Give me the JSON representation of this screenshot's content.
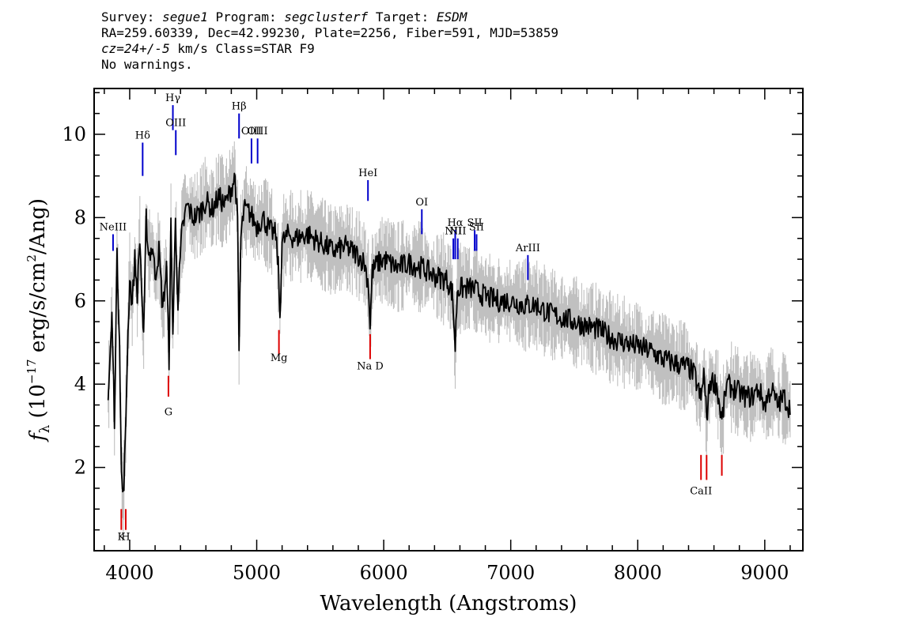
{
  "header": {
    "line1": {
      "survey_label": "Survey:",
      "survey": "segue1",
      "program_label": "Program:",
      "program": "segclusterf",
      "target_label": "Target:",
      "target": "ESDM"
    },
    "line2": "RA=259.60339, Dec=42.99230, Plate=2256, Fiber=591, MJD=53859",
    "line3": {
      "cz": "cz=24+/-5",
      "rest": "km/s Class=STAR F9"
    },
    "line4": "No warnings."
  },
  "chart_data": {
    "type": "line",
    "title": "",
    "xlabel": "Wavelength (Angstroms)",
    "ylabel_parts": {
      "f": "f",
      "sub": "λ",
      "open": " (10",
      "exp": "−17",
      "mid": " erg/s/cm",
      "exp2": "2",
      "close": "/Ang)"
    },
    "xlim": [
      3720,
      9300
    ],
    "ylim": [
      0.0,
      11.1
    ],
    "x_ticks": [
      4000,
      5000,
      6000,
      7000,
      8000,
      9000
    ],
    "x_tick_labels": [
      "4000",
      "5000",
      "6000",
      "7000",
      "8000",
      "9000"
    ],
    "y_ticks": [
      2,
      4,
      6,
      8,
      10
    ],
    "y_tick_labels": [
      "2",
      "4",
      "6",
      "8",
      "10"
    ],
    "grid": false,
    "legend": "none",
    "colors": {
      "flux": "#000000",
      "error": "#c0c0c0",
      "emission": "#0000cc",
      "absorption": "#dd0000"
    },
    "series": [
      {
        "role": "flux",
        "x": [
          3830,
          3860,
          3880,
          3900,
          3920,
          3935,
          3950,
          3965,
          3980,
          4000,
          4020,
          4040,
          4060,
          4080,
          4100,
          4110,
          4130,
          4150,
          4180,
          4200,
          4230,
          4260,
          4290,
          4310,
          4325,
          4340,
          4360,
          4380,
          4410,
          4450,
          4500,
          4550,
          4600,
          4650,
          4700,
          4750,
          4800,
          4830,
          4850,
          4861,
          4875,
          4900,
          4950,
          5000,
          5050,
          5100,
          5150,
          5170,
          5183,
          5200,
          5250,
          5300,
          5400,
          5500,
          5600,
          5700,
          5800,
          5850,
          5880,
          5893,
          5910,
          5950,
          6000,
          6100,
          6200,
          6300,
          6400,
          6500,
          6540,
          6563,
          6580,
          6650,
          6700,
          6800,
          6900,
          7000,
          7100,
          7200,
          7300,
          7400,
          7500,
          7600,
          7700,
          7800,
          7900,
          8000,
          8100,
          8200,
          8300,
          8400,
          8450,
          8498,
          8520,
          8542,
          8570,
          8620,
          8662,
          8700,
          8750,
          8800,
          8850,
          8900,
          8950,
          9000,
          9050,
          9100,
          9150,
          9200
        ],
        "y": [
          3.6,
          5.6,
          3.2,
          7.0,
          5.2,
          1.8,
          1.3,
          2.5,
          4.5,
          6.6,
          5.9,
          7.0,
          6.2,
          7.5,
          5.8,
          5.0,
          8.0,
          7.1,
          7.3,
          6.6,
          7.2,
          5.8,
          6.8,
          4.6,
          7.8,
          5.2,
          7.9,
          6.0,
          7.6,
          8.3,
          8.0,
          8.1,
          8.4,
          8.2,
          8.5,
          8.3,
          8.7,
          9.0,
          7.8,
          4.8,
          7.5,
          8.2,
          8.1,
          7.8,
          8.0,
          7.7,
          7.6,
          6.8,
          5.6,
          7.4,
          7.6,
          7.5,
          7.6,
          7.4,
          7.2,
          7.3,
          7.1,
          6.9,
          6.4,
          5.4,
          6.7,
          6.9,
          7.0,
          6.8,
          6.9,
          6.8,
          6.6,
          6.5,
          6.2,
          4.9,
          6.3,
          6.3,
          6.3,
          6.1,
          6.0,
          6.0,
          5.9,
          5.9,
          5.7,
          5.6,
          5.5,
          5.4,
          5.3,
          5.1,
          5.0,
          4.9,
          4.8,
          4.6,
          4.5,
          4.4,
          4.2,
          3.6,
          4.3,
          3.2,
          4.1,
          4.0,
          3.1,
          4.0,
          3.9,
          3.8,
          3.7,
          3.7,
          3.9,
          3.5,
          3.9,
          3.5,
          3.7,
          3.4
        ]
      },
      {
        "role": "error_band",
        "spread": 0.7
      }
    ],
    "annotations": [
      {
        "label": "NeIII",
        "wavelength": 3869,
        "kind": "emission",
        "y_label": 7.5,
        "y_top": 7.6,
        "y_bot": 7.2
      },
      {
        "label": "Hδ",
        "wavelength": 4102,
        "kind": "emission",
        "y_label": 9.2,
        "y_top": 9.8,
        "y_bot": 9.0
      },
      {
        "label": "Hγ",
        "wavelength": 4340,
        "kind": "emission",
        "y_label": 10.4,
        "y_top": 10.7,
        "y_bot": 10.1
      },
      {
        "label": "OIII",
        "wavelength": 4363,
        "kind": "emission",
        "y_label": 9.8,
        "y_top": 10.1,
        "y_bot": 9.5
      },
      {
        "label": "Hβ",
        "wavelength": 4861,
        "kind": "emission",
        "y_label": 10.5,
        "y_top": 10.5,
        "y_bot": 9.9
      },
      {
        "label": "OIII",
        "wavelength": 4959,
        "kind": "emission",
        "y_label": 9.3,
        "y_top": 9.9,
        "y_bot": 9.3
      },
      {
        "label": "OIII",
        "wavelength": 5007,
        "kind": "emission",
        "y_label": 9.5,
        "y_top": 9.9,
        "y_bot": 9.3
      },
      {
        "label": "HeI",
        "wavelength": 5876,
        "kind": "emission",
        "y_label": 8.6,
        "y_top": 8.9,
        "y_bot": 8.4
      },
      {
        "label": "OI",
        "wavelength": 6300,
        "kind": "emission",
        "y_label": 7.9,
        "y_top": 8.2,
        "y_bot": 7.6
      },
      {
        "label": "NII",
        "wavelength": 6548,
        "kind": "emission",
        "y_label": 7.1,
        "y_top": 7.5,
        "y_bot": 7.0
      },
      {
        "label": "Hα",
        "wavelength": 6563,
        "kind": "emission",
        "y_label": 7.6,
        "y_top": 7.7,
        "y_bot": 7.0
      },
      {
        "label": "NII",
        "wavelength": 6583,
        "kind": "emission",
        "y_label": 7.3,
        "y_top": 7.5,
        "y_bot": 7.0
      },
      {
        "label": "SII",
        "wavelength": 6716,
        "kind": "emission",
        "y_label": 7.5,
        "y_top": 7.7,
        "y_bot": 7.2
      },
      {
        "label": "SII",
        "wavelength": 6731,
        "kind": "emission",
        "y_label": 7.5,
        "y_top": 7.6,
        "y_bot": 7.2
      },
      {
        "label": "ArIII",
        "wavelength": 7135,
        "kind": "emission",
        "y_label": 6.8,
        "y_top": 7.1,
        "y_bot": 6.5
      },
      {
        "label": "K",
        "wavelength": 3934,
        "kind": "absorption",
        "y_label": 0.2,
        "y_top": 1.0,
        "y_bot": 0.5
      },
      {
        "label": "H",
        "wavelength": 3969,
        "kind": "absorption",
        "y_label": 0.2,
        "y_top": 1.0,
        "y_bot": 0.5
      },
      {
        "label": "G",
        "wavelength": 4305,
        "kind": "absorption",
        "y_label": 3.2,
        "y_top": 4.2,
        "y_bot": 3.7
      },
      {
        "label": "Mg",
        "wavelength": 5175,
        "kind": "absorption",
        "y_label": 4.5,
        "y_top": 5.3,
        "y_bot": 4.7
      },
      {
        "label": "Na D",
        "wavelength": 5893,
        "kind": "absorption",
        "y_label": 4.3,
        "y_top": 5.2,
        "y_bot": 4.6
      },
      {
        "label": "CaII",
        "wavelength": 8498,
        "kind": "absorption",
        "y_label": 1.3,
        "y_top": 2.3,
        "y_bot": 1.7
      },
      {
        "label": "",
        "wavelength": 8542,
        "kind": "absorption",
        "y_label": 1.3,
        "y_top": 2.3,
        "y_bot": 1.7
      },
      {
        "label": "",
        "wavelength": 8662,
        "kind": "absorption",
        "y_label": 1.3,
        "y_top": 2.3,
        "y_bot": 1.8
      }
    ]
  }
}
